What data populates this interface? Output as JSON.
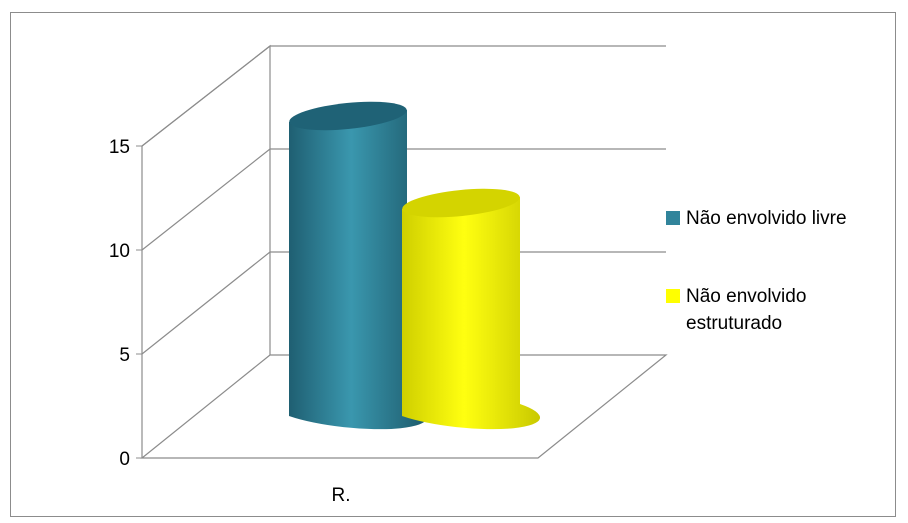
{
  "chart_data": {
    "type": "bar",
    "style": "3d-cylinder",
    "categories": [
      "R."
    ],
    "series": [
      {
        "name": "Não envolvido livre",
        "values": [
          15.2
        ],
        "color": "#31849b"
      },
      {
        "name": "Não envolvido estruturado",
        "values": [
          10.7
        ],
        "color": "#ffff00"
      }
    ],
    "title": "",
    "xlabel": "",
    "ylabel": "",
    "ylim": [
      0,
      15
    ],
    "yticks": [
      0,
      5,
      10,
      15
    ],
    "grid": true,
    "legend": "right"
  }
}
